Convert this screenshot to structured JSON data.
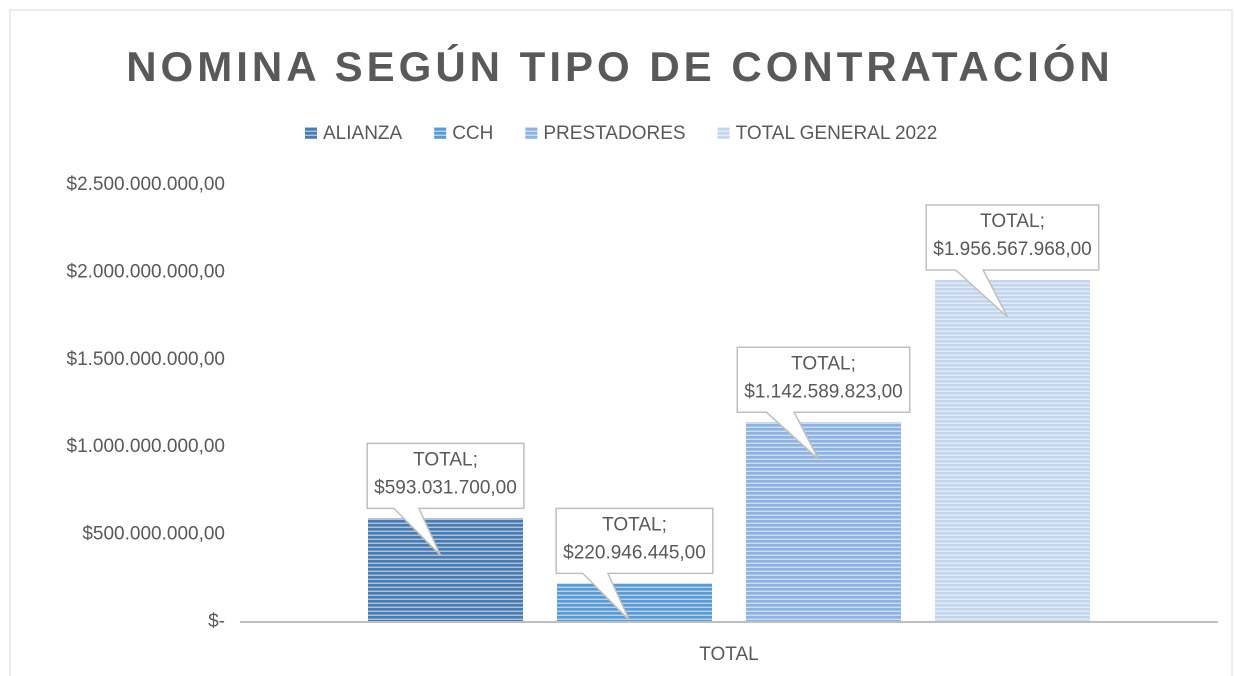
{
  "chart_data": {
    "type": "bar",
    "title": "NOMINA SEGÚN TIPO DE CONTRATACIÓN",
    "categories": [
      "TOTAL"
    ],
    "series": [
      {
        "name": "ALIANZA",
        "color": "#4a7bb3",
        "values": [
          593031700
        ],
        "value_labels": [
          "TOTAL; $593.031.700,00"
        ]
      },
      {
        "name": "CCH",
        "color": "#5b9bd5",
        "values": [
          220946445
        ],
        "value_labels": [
          "TOTAL; $220.946.445,00"
        ]
      },
      {
        "name": "PRESTADORES",
        "color": "#8db3e2",
        "values": [
          1142589823
        ],
        "value_labels": [
          "TOTAL; $1.142.589.823,00"
        ]
      },
      {
        "name": "TOTAL GENERAL 2022",
        "color": "#c3d5ef",
        "values": [
          1956567968
        ],
        "value_labels": [
          "TOTAL; $1.956.567.968,00"
        ]
      }
    ],
    "ylim": [
      0,
      2500000000
    ],
    "yticks": [
      {
        "value": 0,
        "label": "$-"
      },
      {
        "value": 500000000,
        "label": "$500.000.000,00"
      },
      {
        "value": 1000000000,
        "label": "$1.000.000.000,00"
      },
      {
        "value": 1500000000,
        "label": "$1.500.000.000,00"
      },
      {
        "value": 2000000000,
        "label": "$2.000.000.000,00"
      },
      {
        "value": 2500000000,
        "label": "$2.500.000.000,00"
      }
    ],
    "legend": "top",
    "grid": false
  }
}
